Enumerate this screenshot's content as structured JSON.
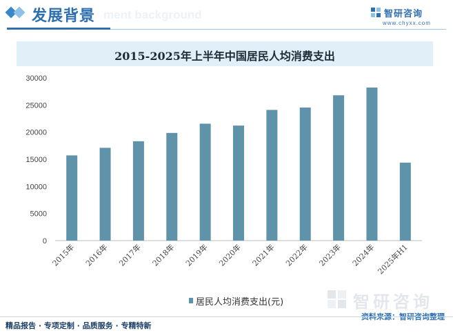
{
  "header": {
    "title": "发展背景",
    "ghost_text": "ment background",
    "brand_name": "智研咨询",
    "brand_url": "www.chyxx.com"
  },
  "colors": {
    "bar": "#5f93a9",
    "title_band": "#e0eff8",
    "accent": "#2e6fb0",
    "grid": "#e3e3e3"
  },
  "legend": {
    "label": "居民人均消费支出(元)"
  },
  "watermark": {
    "text": "智研咨询"
  },
  "source": "资料来源：智研咨询整理",
  "footer": "精品报告 · 专项定制 · 品质服务 · 专精特新",
  "chart_data": {
    "type": "bar",
    "title": "2015-2025年上半年中国居民人均消费支出",
    "categories": [
      "2015年",
      "2016年",
      "2017年",
      "2018年",
      "2019年",
      "2020年",
      "2021年",
      "2022年",
      "2023年",
      "2024年",
      "2025年H1"
    ],
    "series": [
      {
        "name": "居民人均消费支出(元)",
        "values": [
          15712,
          17111,
          18322,
          19853,
          21559,
          21210,
          24100,
          24538,
          26796,
          28227,
          14381
        ]
      }
    ],
    "yticks": [
      "0",
      "5000",
      "10000",
      "15000",
      "20000",
      "25000",
      "30000"
    ],
    "ylim": [
      0,
      30000
    ],
    "grid": false,
    "legend_position": "bottom"
  }
}
